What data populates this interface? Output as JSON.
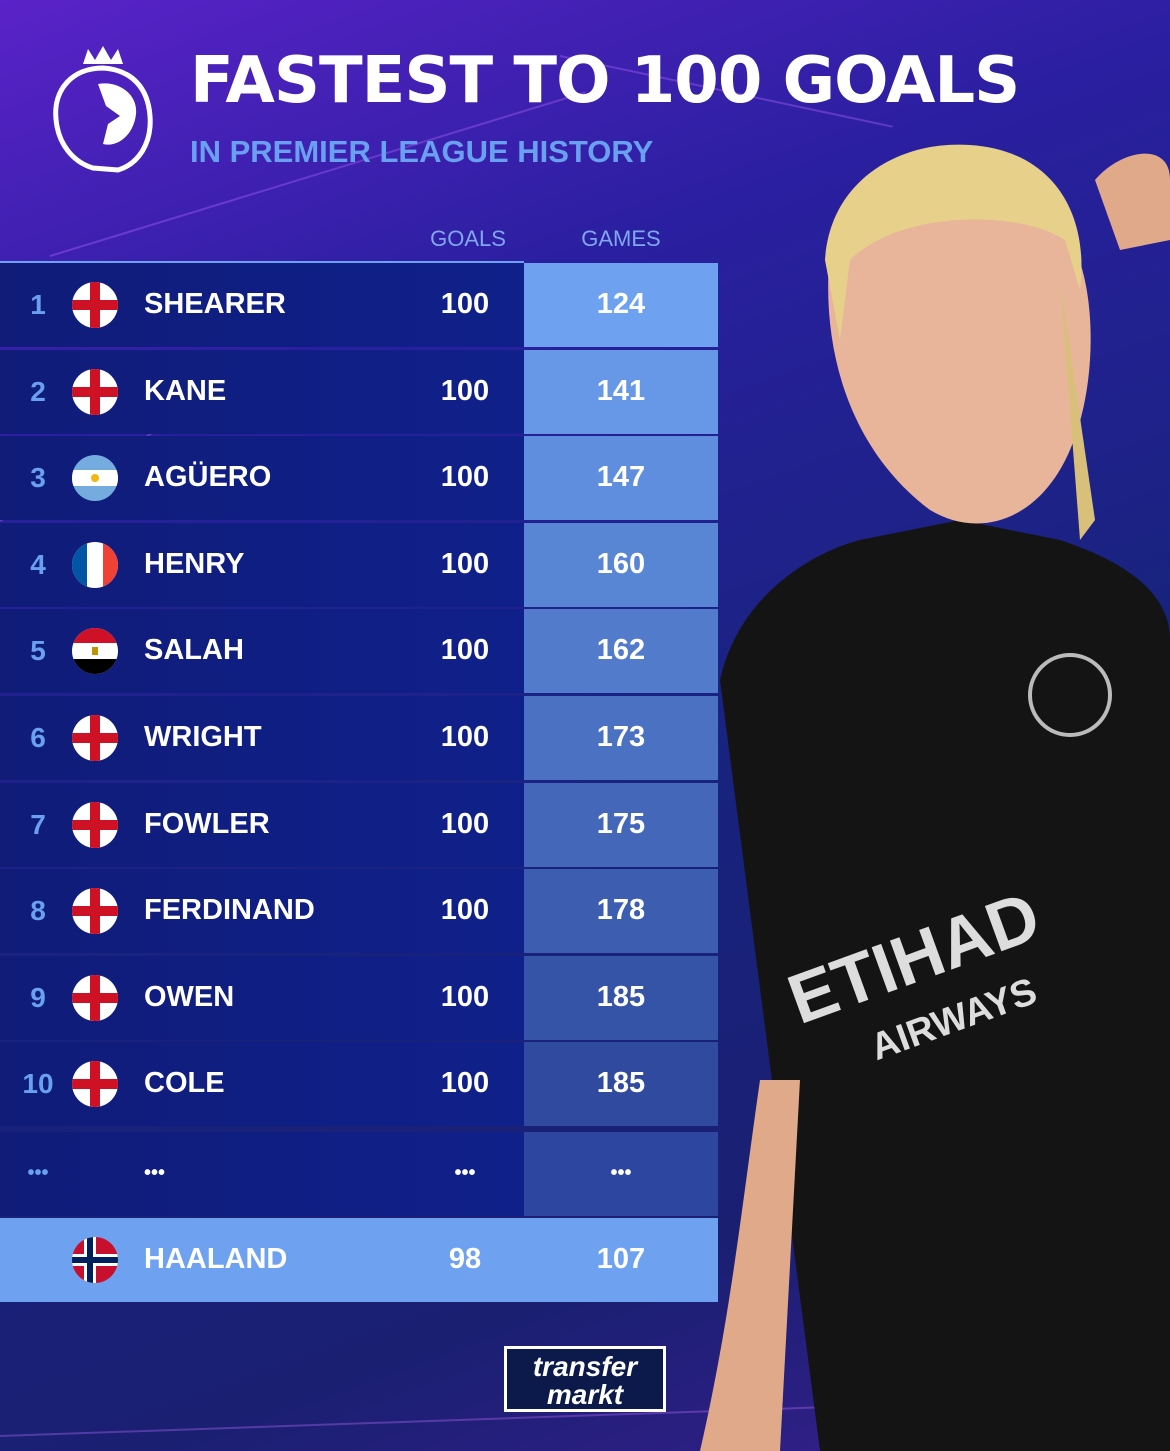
{
  "header": {
    "title": "FASTEST TO 100 GOALS",
    "subtitle": "IN PREMIER LEAGUE HISTORY",
    "logo": "premier-league-lion-logo"
  },
  "columns": {
    "goals": "GOALS",
    "games": "GAMES"
  },
  "rows": [
    {
      "rank": "1",
      "flag": "england",
      "name": "SHEARER",
      "goals": "100",
      "games": "124"
    },
    {
      "rank": "2",
      "flag": "england",
      "name": "KANE",
      "goals": "100",
      "games": "141"
    },
    {
      "rank": "3",
      "flag": "argentina",
      "name": "AGÜERO",
      "goals": "100",
      "games": "147"
    },
    {
      "rank": "4",
      "flag": "france",
      "name": "HENRY",
      "goals": "100",
      "games": "160"
    },
    {
      "rank": "5",
      "flag": "egypt",
      "name": "SALAH",
      "goals": "100",
      "games": "162"
    },
    {
      "rank": "6",
      "flag": "england",
      "name": "WRIGHT",
      "goals": "100",
      "games": "173"
    },
    {
      "rank": "7",
      "flag": "england",
      "name": "FOWLER",
      "goals": "100",
      "games": "175"
    },
    {
      "rank": "8",
      "flag": "england",
      "name": "FERDINAND",
      "goals": "100",
      "games": "178"
    },
    {
      "rank": "9",
      "flag": "england",
      "name": "OWEN",
      "goals": "100",
      "games": "185"
    },
    {
      "rank": "10",
      "flag": "england",
      "name": "COLE",
      "goals": "100",
      "games": "185"
    }
  ],
  "ellipsis": {
    "rank": "•••",
    "name": "•••",
    "goals": "•••",
    "games": "•••"
  },
  "highlight": {
    "flag": "norway",
    "name": "HAALAND",
    "goals": "98",
    "games": "107"
  },
  "photo": {
    "sponsor_line1": "ETIHAD",
    "sponsor_line2": "AIRWAYS"
  },
  "branding": {
    "line1": "transfer",
    "line2": "markt"
  },
  "colors": {
    "games_top": "#6ea2f0",
    "games_bottom": "#2f4a9e",
    "highlight": "#6ea2f0",
    "subtitle": "#6aa0f0"
  }
}
